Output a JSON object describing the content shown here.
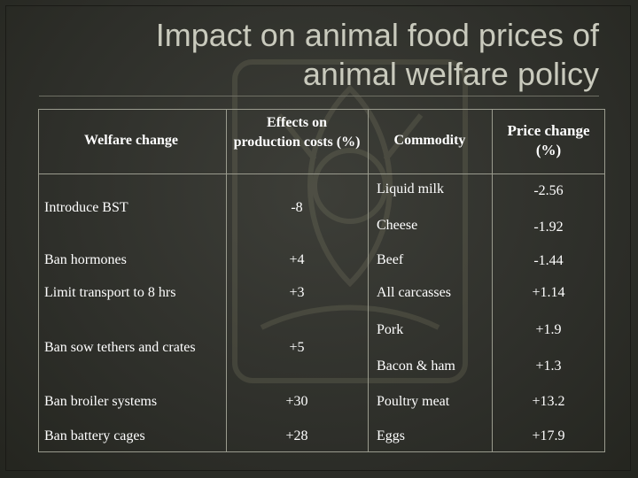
{
  "slide": {
    "title_line1": "Impact on animal food prices of",
    "title_line2": "animal welfare policy"
  },
  "table": {
    "headers": {
      "welfare_change": "Welfare change",
      "effects": "Effects on production costs (%)",
      "commodity": "Commodity",
      "price_change": "Price change (%)"
    },
    "rows": [
      {
        "welfare": "Introduce BST",
        "effect": "-8",
        "items": [
          {
            "commodity": "Liquid milk",
            "price": "-2.56"
          },
          {
            "commodity": "Cheese",
            "price": "-1.92"
          }
        ]
      },
      {
        "welfare": "Ban hormones",
        "effect": "+4",
        "items": [
          {
            "commodity": "Beef",
            "price": "-1.44"
          }
        ]
      },
      {
        "welfare": "Limit transport to 8 hrs",
        "effect": "+3",
        "items": [
          {
            "commodity": "All carcasses",
            "price": "+1.14"
          }
        ]
      },
      {
        "welfare": "Ban sow tethers and crates",
        "effect": "+5",
        "items": [
          {
            "commodity": "Pork",
            "price": "+1.9"
          },
          {
            "commodity": "Bacon & ham",
            "price": "+1.3"
          }
        ]
      },
      {
        "welfare": "Ban broiler systems",
        "effect": "+30",
        "items": [
          {
            "commodity": "Poultry meat",
            "price": "+13.2"
          }
        ]
      },
      {
        "welfare": "Ban battery cages",
        "effect": "+28",
        "items": [
          {
            "commodity": "Eggs",
            "price": "+17.9"
          }
        ]
      }
    ]
  }
}
